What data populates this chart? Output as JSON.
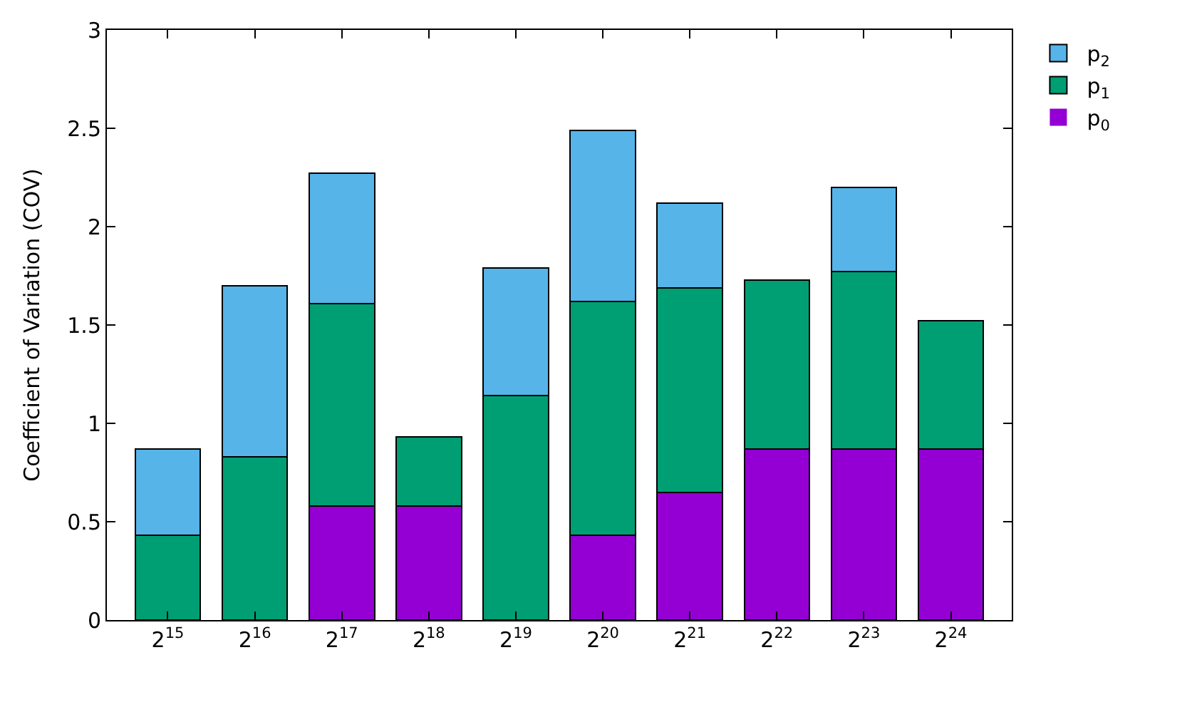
{
  "chart_data": {
    "type": "bar",
    "stacked": true,
    "ylabel": "Coefficient of Variation (COV)",
    "categories": [
      "2$^{15}$",
      "2$^{16}$",
      "2$^{17}$",
      "2$^{18}$",
      "2$^{19}$",
      "2$^{20}$",
      "2$^{21}$",
      "2$^{22}$",
      "2$^{23}$",
      "2$^{24}$"
    ],
    "series": [
      {
        "name": "p$_{0}$",
        "color": "#9400d3",
        "values": [
          0,
          0,
          0.58,
          0.58,
          0,
          0.43,
          0.65,
          0.87,
          0.87,
          0.87
        ]
      },
      {
        "name": "p$_{1}$",
        "color": "#009e73",
        "values": [
          0.43,
          0.83,
          1.03,
          0.35,
          1.14,
          1.19,
          1.04,
          0.86,
          0.9,
          0.65
        ]
      },
      {
        "name": "p$_{2}$",
        "color": "#56b4e9",
        "values": [
          0.44,
          0.87,
          0.66,
          0,
          0.65,
          0.87,
          0.43,
          0,
          0.43,
          0
        ]
      }
    ],
    "ylim": [
      0,
      3
    ],
    "yticks": [
      0,
      0.5,
      1,
      1.5,
      2,
      2.5,
      3
    ],
    "legend": "top right"
  }
}
